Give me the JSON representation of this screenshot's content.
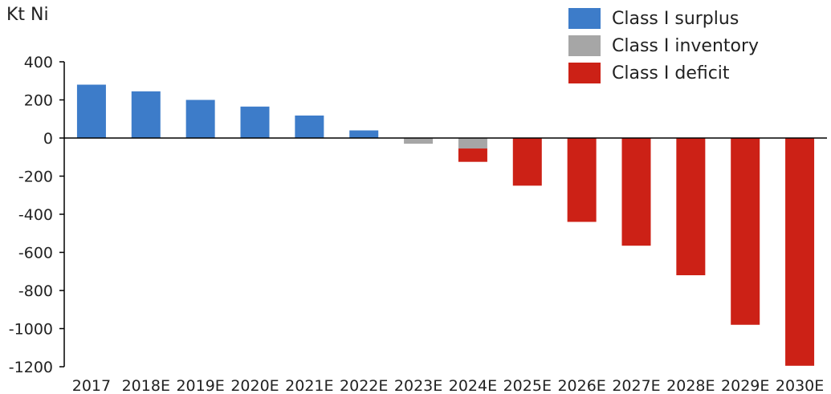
{
  "chart_data": {
    "type": "bar",
    "stacked": true,
    "title": "",
    "xlabel": "",
    "ylabel": "Kt Ni",
    "ylim": [
      -1200,
      400
    ],
    "yticks": [
      400,
      200,
      0,
      -200,
      -400,
      -600,
      -800,
      -1000,
      -1200
    ],
    "grid": false,
    "legend_position": "top-right",
    "categories": [
      "2017",
      "2018E",
      "2019E",
      "2020E",
      "2021E",
      "2022E",
      "2023E",
      "2024E",
      "2025E",
      "2026E",
      "2027E",
      "2028E",
      "2029E",
      "2030E"
    ],
    "series": [
      {
        "name": "Class I surplus",
        "color": "#3d7cc9",
        "values": [
          280,
          245,
          200,
          165,
          118,
          40,
          0,
          0,
          0,
          0,
          0,
          0,
          0,
          0
        ]
      },
      {
        "name": "Class I inventory",
        "color": "#a6a6a6",
        "values": [
          0,
          0,
          0,
          0,
          0,
          0,
          -30,
          -55,
          0,
          0,
          0,
          0,
          0,
          0
        ]
      },
      {
        "name": "Class I deficit",
        "color": "#cc2116",
        "values": [
          0,
          0,
          0,
          0,
          0,
          0,
          0,
          -70,
          -250,
          -440,
          -565,
          -720,
          -980,
          -1195
        ]
      }
    ]
  }
}
